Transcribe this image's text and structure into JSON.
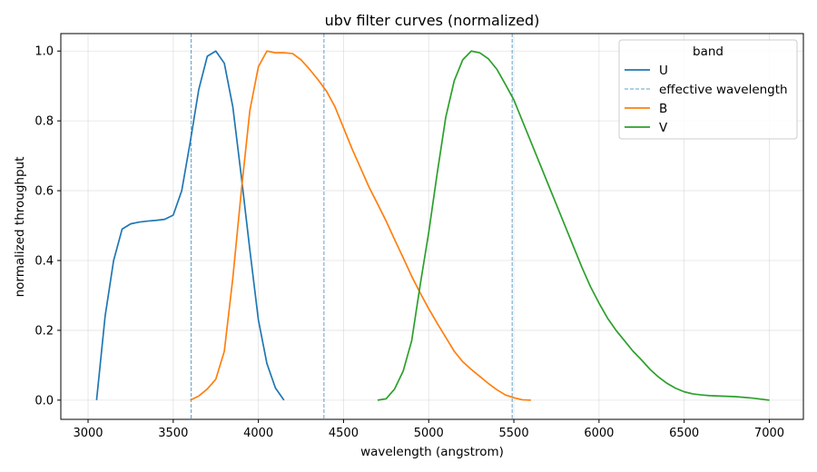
{
  "chart_data": {
    "type": "line",
    "title": "ubv filter curves (normalized)",
    "xlabel": "wavelength (angstrom)",
    "ylabel": "normalized throughput",
    "xlim": [
      2840,
      7200
    ],
    "ylim": [
      -0.055,
      1.05
    ],
    "xticks": [
      3000,
      3500,
      4000,
      4500,
      5000,
      5500,
      6000,
      6500,
      7000
    ],
    "yticks": [
      0.0,
      0.2,
      0.4,
      0.6,
      0.8,
      1.0
    ],
    "xtick_labels": [
      "3000",
      "3500",
      "4000",
      "4500",
      "5000",
      "5500",
      "6000",
      "6500",
      "7000"
    ],
    "ytick_labels": [
      "0.0",
      "0.2",
      "0.4",
      "0.6",
      "0.8",
      "1.0"
    ],
    "grid": true,
    "legend": {
      "title": "band",
      "placement": "top-right",
      "entries": [
        "U",
        "effective wavelength",
        "B",
        "V"
      ]
    },
    "effective_wavelengths": [
      3605,
      4385,
      5490
    ],
    "series": [
      {
        "name": "U",
        "color": "#1f77b4",
        "x": [
          3050,
          3100,
          3150,
          3200,
          3250,
          3300,
          3350,
          3400,
          3450,
          3500,
          3550,
          3600,
          3650,
          3700,
          3750,
          3800,
          3850,
          3900,
          3950,
          4000,
          4050,
          4100,
          4150
        ],
        "y": [
          0.0,
          0.24,
          0.4,
          0.49,
          0.505,
          0.51,
          0.513,
          0.515,
          0.518,
          0.53,
          0.6,
          0.74,
          0.89,
          0.985,
          1.0,
          0.965,
          0.84,
          0.64,
          0.43,
          0.23,
          0.105,
          0.035,
          0.0
        ]
      },
      {
        "name": "B",
        "color": "#ff7f0e",
        "x": [
          3600,
          3650,
          3700,
          3750,
          3800,
          3850,
          3900,
          3950,
          4000,
          4050,
          4100,
          4150,
          4200,
          4250,
          4300,
          4350,
          4400,
          4450,
          4500,
          4550,
          4600,
          4650,
          4700,
          4750,
          4800,
          4850,
          4900,
          4950,
          5000,
          5050,
          5100,
          5150,
          5200,
          5250,
          5300,
          5350,
          5400,
          5450,
          5500,
          5550,
          5600
        ],
        "y": [
          0.0,
          0.012,
          0.032,
          0.06,
          0.14,
          0.35,
          0.6,
          0.83,
          0.955,
          1.0,
          0.995,
          0.995,
          0.993,
          0.975,
          0.948,
          0.918,
          0.885,
          0.84,
          0.78,
          0.72,
          0.665,
          0.61,
          0.562,
          0.513,
          0.46,
          0.408,
          0.355,
          0.307,
          0.262,
          0.22,
          0.18,
          0.14,
          0.11,
          0.088,
          0.068,
          0.048,
          0.03,
          0.015,
          0.007,
          0.001,
          0.0
        ]
      },
      {
        "name": "V",
        "color": "#2ca02c",
        "x": [
          4700,
          4750,
          4800,
          4850,
          4900,
          4950,
          5000,
          5050,
          5100,
          5150,
          5200,
          5250,
          5300,
          5350,
          5400,
          5450,
          5500,
          5550,
          5600,
          5650,
          5700,
          5750,
          5800,
          5850,
          5900,
          5950,
          6000,
          6050,
          6100,
          6150,
          6200,
          6250,
          6300,
          6350,
          6400,
          6450,
          6500,
          6550,
          6600,
          6650,
          6700,
          6750,
          6800,
          6850,
          6900,
          6950,
          7000
        ],
        "y": [
          0.0,
          0.004,
          0.032,
          0.083,
          0.17,
          0.33,
          0.48,
          0.65,
          0.81,
          0.915,
          0.975,
          1.0,
          0.995,
          0.978,
          0.948,
          0.905,
          0.86,
          0.8,
          0.74,
          0.68,
          0.62,
          0.56,
          0.5,
          0.44,
          0.38,
          0.325,
          0.278,
          0.235,
          0.2,
          0.17,
          0.14,
          0.115,
          0.088,
          0.066,
          0.048,
          0.034,
          0.024,
          0.018,
          0.015,
          0.013,
          0.012,
          0.011,
          0.01,
          0.008,
          0.006,
          0.003,
          0.0
        ]
      }
    ]
  },
  "colors": {
    "U": "#1f77b4",
    "B": "#ff7f0e",
    "V": "#2ca02c",
    "effective_wavelength": "#1f77b4",
    "grid": "#b0b0b0"
  }
}
